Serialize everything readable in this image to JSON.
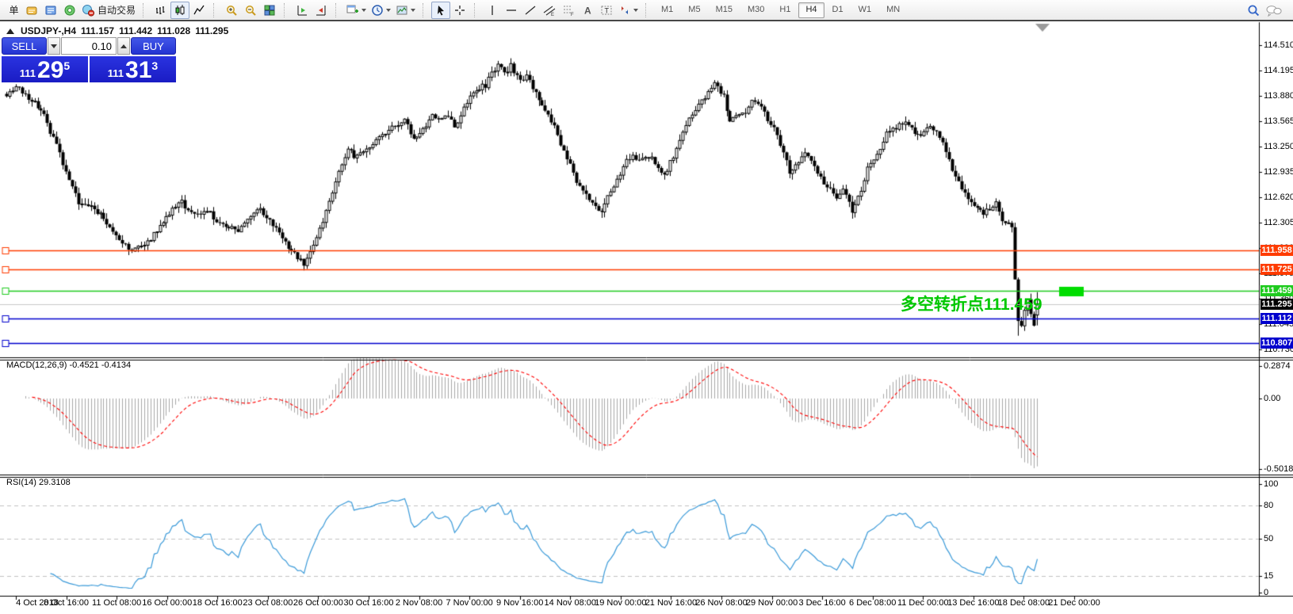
{
  "toolbar": {
    "new_order_label": "单",
    "auto_trading_label": "自动交易",
    "groups": [
      {
        "name": "charts",
        "items": [
          {
            "icon": "bar-chart"
          },
          {
            "icon": "candlestick-chart",
            "active": true
          },
          {
            "icon": "line-chart"
          }
        ]
      },
      {
        "name": "zoom",
        "items": [
          {
            "icon": "zoom-in"
          },
          {
            "icon": "zoom-out"
          },
          {
            "icon": "tile-windows"
          }
        ]
      },
      {
        "name": "scroll",
        "items": [
          {
            "icon": "auto-scroll"
          },
          {
            "icon": "chart-shift"
          }
        ]
      },
      {
        "name": "new",
        "items": [
          {
            "icon": "new-chart",
            "dropdown": true
          },
          {
            "icon": "periods-clock",
            "dropdown": true
          },
          {
            "icon": "templates",
            "dropdown": true
          }
        ]
      },
      {
        "name": "pointer",
        "items": [
          {
            "icon": "cursor",
            "active": true
          },
          {
            "icon": "crosshair"
          }
        ]
      },
      {
        "name": "objects",
        "items": [
          {
            "icon": "vertical-line"
          },
          {
            "icon": "horizontal-line"
          },
          {
            "icon": "trendline"
          },
          {
            "icon": "equidistant-channel"
          },
          {
            "icon": "fibonacci"
          },
          {
            "icon": "text"
          },
          {
            "icon": "text-label"
          },
          {
            "icon": "arrows",
            "dropdown": true
          }
        ]
      }
    ],
    "timeframes": [
      "M1",
      "M5",
      "M15",
      "M30",
      "H1",
      "H4",
      "D1",
      "W1",
      "MN"
    ],
    "selected_timeframe": "H4"
  },
  "chart_header": {
    "symbol": "USDJPY-,H4",
    "open": "111.157",
    "high": "111.442",
    "low": "111.028",
    "close": "111.295"
  },
  "trade_panel": {
    "sell_label": "SELL",
    "buy_label": "BUY",
    "volume": "0.10",
    "sell_small": "111",
    "sell_big": "29",
    "sell_sup": "5",
    "buy_small": "111",
    "buy_big": "31",
    "buy_sup": "3"
  },
  "annotation": {
    "text": "多空转折点",
    "number": "111.459",
    "color": "#00c800"
  },
  "macd_pane": {
    "label": "MACD(12,26,9)",
    "values": "-0.4521 -0.4134"
  },
  "rsi_pane": {
    "label": "RSI(14)",
    "value": "29.3108"
  },
  "chart_data": {
    "type": "candlestick",
    "title": "USDJPY-,H4",
    "bars": 330,
    "ylim": [
      110.62,
      114.79
    ],
    "price_axis_labels": [
      "114.510",
      "114.195",
      "113.880",
      "113.565",
      "113.250",
      "112.935",
      "112.620",
      "112.305",
      "111.990",
      "111.675",
      "111.360",
      "111.045",
      "110.730"
    ],
    "time_axis_labels": [
      "4 Oct 2018",
      "8 Oct 16:00",
      "11 Oct 08:00",
      "16 Oct 00:00",
      "18 Oct 16:00",
      "23 Oct 08:00",
      "26 Oct 00:00",
      "30 Oct 16:00",
      "2 Nov 08:00",
      "7 Nov 00:00",
      "9 Nov 16:00",
      "14 Nov 08:00",
      "19 Nov 00:00",
      "21 Nov 16:00",
      "26 Nov 08:00",
      "29 Nov 00:00",
      "3 Dec 16:00",
      "6 Dec 08:00",
      "11 Dec 00:00",
      "13 Dec 16:00",
      "18 Dec 08:00",
      "21 Dec 00:00"
    ],
    "levels": [
      {
        "value": 111.958,
        "label": "111.958",
        "color": "#ff3c00"
      },
      {
        "value": 111.725,
        "label": "111.725",
        "color": "#ff3c00"
      },
      {
        "value": 111.459,
        "label": "111.459",
        "color": "#1ecb1e"
      },
      {
        "value": 111.112,
        "label": "111.112",
        "color": "#0000cd"
      },
      {
        "value": 110.807,
        "label": "110.807",
        "color": "#0000cd"
      }
    ],
    "current_price": {
      "value": 111.295,
      "label": "111.295",
      "line_color": "#c8c8c8",
      "badge_bg": "#000000"
    },
    "highlight_rect": {
      "price": 111.459,
      "color": "#00dd00"
    },
    "last_bar": {
      "open": 111.157,
      "high": 111.442,
      "low": 111.028,
      "close": 111.295
    },
    "anchors": [
      [
        0,
        113.88
      ],
      [
        4,
        113.98
      ],
      [
        8,
        113.82
      ],
      [
        12,
        113.65
      ],
      [
        16,
        113.25
      ],
      [
        20,
        112.85
      ],
      [
        23,
        112.55
      ],
      [
        27,
        112.5
      ],
      [
        30,
        112.42
      ],
      [
        33,
        112.25
      ],
      [
        36,
        112.08
      ],
      [
        40,
        111.97
      ],
      [
        43,
        112.02
      ],
      [
        46,
        112.1
      ],
      [
        50,
        112.32
      ],
      [
        53,
        112.48
      ],
      [
        56,
        112.55
      ],
      [
        60,
        112.38
      ],
      [
        64,
        112.44
      ],
      [
        67,
        112.34
      ],
      [
        70,
        112.26
      ],
      [
        74,
        112.2
      ],
      [
        78,
        112.4
      ],
      [
        81,
        112.46
      ],
      [
        85,
        112.28
      ],
      [
        89,
        112.06
      ],
      [
        92,
        111.92
      ],
      [
        95,
        111.8
      ],
      [
        97,
        111.95
      ],
      [
        99,
        112.12
      ],
      [
        102,
        112.45
      ],
      [
        104,
        112.72
      ],
      [
        107,
        113.05
      ],
      [
        109,
        113.22
      ],
      [
        111,
        113.12
      ],
      [
        113,
        113.16
      ],
      [
        117,
        113.3
      ],
      [
        120,
        113.38
      ],
      [
        122,
        113.45
      ],
      [
        125,
        113.5
      ],
      [
        127,
        113.55
      ],
      [
        130,
        113.36
      ],
      [
        133,
        113.44
      ],
      [
        136,
        113.68
      ],
      [
        138,
        113.56
      ],
      [
        141,
        113.64
      ],
      [
        143,
        113.52
      ],
      [
        147,
        113.78
      ],
      [
        150,
        113.95
      ],
      [
        153,
        114.02
      ],
      [
        157,
        114.28
      ],
      [
        159,
        114.18
      ],
      [
        161,
        114.24
      ],
      [
        164,
        114.08
      ],
      [
        166,
        114.14
      ],
      [
        169,
        113.88
      ],
      [
        171,
        113.74
      ],
      [
        174,
        113.58
      ],
      [
        176,
        113.36
      ],
      [
        179,
        113.1
      ],
      [
        183,
        112.76
      ],
      [
        186,
        112.6
      ],
      [
        190,
        112.44
      ],
      [
        193,
        112.68
      ],
      [
        197,
        113.02
      ],
      [
        200,
        113.14
      ],
      [
        203,
        113.08
      ],
      [
        206,
        113.16
      ],
      [
        208,
        113.0
      ],
      [
        210,
        112.9
      ],
      [
        212,
        113.04
      ],
      [
        215,
        113.32
      ],
      [
        218,
        113.58
      ],
      [
        222,
        113.82
      ],
      [
        226,
        114.02
      ],
      [
        229,
        113.88
      ],
      [
        231,
        113.56
      ],
      [
        234,
        113.64
      ],
      [
        236,
        113.7
      ],
      [
        239,
        113.84
      ],
      [
        241,
        113.78
      ],
      [
        243,
        113.6
      ],
      [
        245,
        113.46
      ],
      [
        248,
        113.16
      ],
      [
        250,
        112.96
      ],
      [
        253,
        113.04
      ],
      [
        255,
        113.18
      ],
      [
        258,
        113.0
      ],
      [
        260,
        112.86
      ],
      [
        263,
        112.7
      ],
      [
        265,
        112.62
      ],
      [
        267,
        112.74
      ],
      [
        270,
        112.46
      ],
      [
        273,
        112.7
      ],
      [
        275,
        113.0
      ],
      [
        278,
        113.16
      ],
      [
        281,
        113.4
      ],
      [
        284,
        113.5
      ],
      [
        287,
        113.56
      ],
      [
        290,
        113.42
      ],
      [
        292,
        113.36
      ],
      [
        295,
        113.54
      ],
      [
        297,
        113.42
      ],
      [
        300,
        113.2
      ],
      [
        302,
        112.96
      ],
      [
        305,
        112.76
      ],
      [
        307,
        112.62
      ],
      [
        310,
        112.5
      ],
      [
        312,
        112.42
      ],
      [
        314,
        112.46
      ],
      [
        316,
        112.54
      ],
      [
        318,
        112.36
      ],
      [
        320,
        112.28
      ],
      [
        321,
        112.24
      ],
      [
        322,
        111.6
      ],
      [
        323,
        111.1
      ],
      [
        324,
        111.06
      ],
      [
        325,
        111.22
      ],
      [
        326,
        111.34
      ],
      [
        327,
        111.16
      ],
      [
        328,
        111.06
      ],
      [
        329,
        111.295
      ]
    ],
    "indicators": [
      {
        "name": "MACD",
        "params": "12,26,9",
        "last_values": [
          -0.4521,
          -0.4134
        ],
        "scale": [
          "0.2874",
          "0.00",
          "-0.5018"
        ],
        "histogram_color": "#a8a8a8",
        "signal_color": "#ff0000"
      },
      {
        "name": "RSI",
        "params": "14",
        "last_value": 29.3108,
        "scale": [
          "100",
          "80",
          "50",
          "15",
          "0"
        ],
        "line_color": "#3a9ad9",
        "levels": [
          80,
          50,
          15
        ]
      }
    ]
  }
}
